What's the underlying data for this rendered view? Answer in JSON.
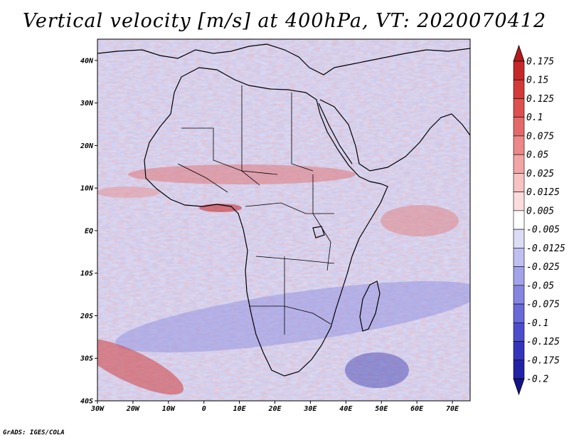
{
  "title": "Vertical velocity [m/s] at 400hPa, VT: 2020070412",
  "footer": "GrADS: IGES/COLA",
  "map": {
    "variable": "Vertical velocity",
    "units": "m/s",
    "level": "400hPa",
    "valid_time": "2020070412",
    "lon_range": [
      -30,
      75
    ],
    "lat_range": [
      -40,
      45
    ],
    "x_ticks": [
      "30W",
      "20W",
      "10W",
      "0",
      "10E",
      "20E",
      "30E",
      "40E",
      "50E",
      "60E",
      "70E"
    ],
    "y_ticks": [
      "40N",
      "30N",
      "20N",
      "10N",
      "EQ",
      "10S",
      "20S",
      "30S",
      "40S"
    ]
  },
  "colorbar": {
    "levels": [
      "0.175",
      "0.15",
      "0.125",
      "0.1",
      "0.075",
      "0.05",
      "0.025",
      "0.0125",
      "0.005",
      "-0.005",
      "-0.0125",
      "-0.025",
      "-0.05",
      "-0.075",
      "-0.1",
      "-0.125",
      "-0.175",
      "-0.2"
    ],
    "colors": [
      "#b41a1a",
      "#c52828",
      "#d23a3a",
      "#dc5050",
      "#e46a6a",
      "#ec8888",
      "#f2a5a5",
      "#f7c2c2",
      "#fbdcdc",
      "#ffffff",
      "#dcdcf6",
      "#c0c0f0",
      "#a3a3e9",
      "#8686e1",
      "#6969d8",
      "#4d4dcc",
      "#3434bb",
      "#2222a6",
      "#14148a"
    ]
  }
}
